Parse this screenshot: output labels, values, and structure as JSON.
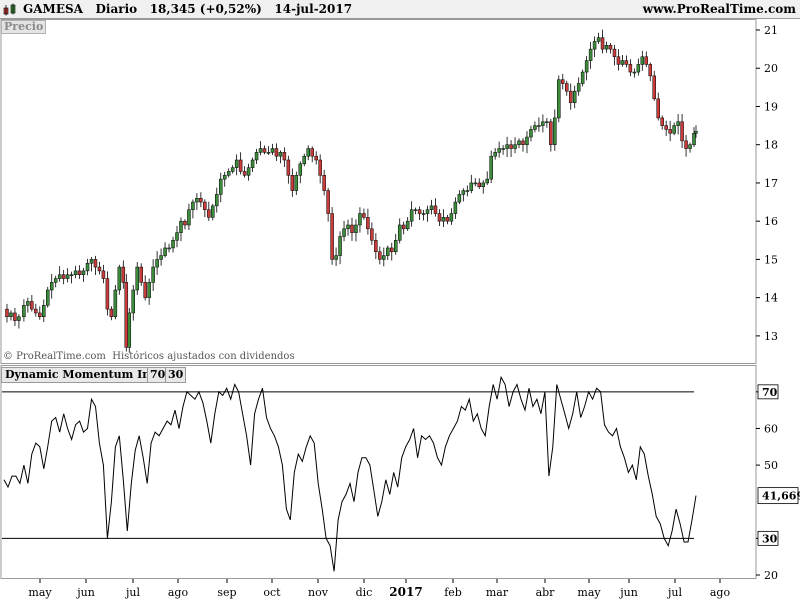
{
  "header": {
    "symbol": "GAMESA",
    "period": "Diario",
    "price_change": "18,345 (+0,52%)",
    "date": "14-jul-2017",
    "url": "www.ProRealTime.com"
  },
  "price_panel": {
    "label": "Precio",
    "copyright": "© ProRealTime.com  Históricos ajustados con dividendos"
  },
  "indicator_panel": {
    "label": "Dynamic Momentum Index",
    "level_high": "70",
    "level_low": "30"
  },
  "colors": {
    "up": "#3c8c3c",
    "down": "#c83c3c",
    "line": "#000000",
    "tag_bg": "#e8e8e8"
  },
  "chart_data": [
    {
      "type": "candlestick",
      "title": "Precio",
      "y_ticks": [
        13,
        14,
        15,
        16,
        17,
        18,
        19,
        20,
        21
      ],
      "ylim": [
        12.1,
        21.3
      ],
      "x_labels": [
        "may",
        "jun",
        "jul",
        "ago",
        "sep",
        "oct",
        "nov",
        "dic",
        "2017",
        "feb",
        "mar",
        "abr",
        "may",
        "jun",
        "jul",
        "ago"
      ],
      "last_close": 18.345,
      "points": [
        [
          0,
          13.7
        ],
        [
          3,
          13.5
        ],
        [
          7,
          13.6
        ],
        [
          11,
          13.4
        ],
        [
          15,
          13.5
        ],
        [
          20,
          13.8
        ],
        [
          24,
          13.9
        ],
        [
          28,
          13.7
        ],
        [
          32,
          13.6
        ],
        [
          36,
          13.5
        ],
        [
          40,
          13.8
        ],
        [
          44,
          14.2
        ],
        [
          48,
          14.4
        ],
        [
          52,
          14.5
        ],
        [
          56,
          14.6
        ],
        [
          60,
          14.5
        ],
        [
          64,
          14.6
        ],
        [
          68,
          14.6
        ],
        [
          72,
          14.7
        ],
        [
          76,
          14.6
        ],
        [
          80,
          14.7
        ],
        [
          84,
          14.9
        ],
        [
          88,
          15.0
        ],
        [
          92,
          14.8
        ],
        [
          96,
          14.7
        ],
        [
          100,
          14.5
        ],
        [
          104,
          13.7
        ],
        [
          108,
          13.5
        ],
        [
          112,
          14.2
        ],
        [
          116,
          14.8
        ],
        [
          120,
          14.4
        ],
        [
          123,
          12.7
        ],
        [
          126,
          13.6
        ],
        [
          130,
          14.2
        ],
        [
          134,
          14.8
        ],
        [
          138,
          14.4
        ],
        [
          142,
          14.0
        ],
        [
          146,
          14.4
        ],
        [
          150,
          14.8
        ],
        [
          154,
          15.0
        ],
        [
          158,
          15.1
        ],
        [
          162,
          15.3
        ],
        [
          166,
          15.3
        ],
        [
          170,
          15.5
        ],
        [
          174,
          15.7
        ],
        [
          178,
          16.0
        ],
        [
          182,
          15.9
        ],
        [
          186,
          16.3
        ],
        [
          190,
          16.5
        ],
        [
          194,
          16.6
        ],
        [
          198,
          16.5
        ],
        [
          202,
          16.3
        ],
        [
          206,
          16.1
        ],
        [
          210,
          16.4
        ],
        [
          214,
          16.7
        ],
        [
          218,
          17.1
        ],
        [
          222,
          17.2
        ],
        [
          226,
          17.3
        ],
        [
          230,
          17.4
        ],
        [
          234,
          17.6
        ],
        [
          238,
          17.3
        ],
        [
          242,
          17.2
        ],
        [
          246,
          17.4
        ],
        [
          250,
          17.6
        ],
        [
          254,
          17.8
        ],
        [
          258,
          17.9
        ],
        [
          262,
          17.8
        ],
        [
          266,
          17.8
        ],
        [
          270,
          17.9
        ],
        [
          274,
          17.7
        ],
        [
          278,
          17.8
        ],
        [
          282,
          17.6
        ],
        [
          286,
          17.2
        ],
        [
          290,
          16.8
        ],
        [
          294,
          17.2
        ],
        [
          298,
          17.5
        ],
        [
          302,
          17.7
        ],
        [
          306,
          17.9
        ],
        [
          310,
          17.7
        ],
        [
          314,
          17.6
        ],
        [
          318,
          17.2
        ],
        [
          322,
          16.8
        ],
        [
          326,
          16.2
        ],
        [
          330,
          15.0
        ],
        [
          334,
          15.1
        ],
        [
          338,
          15.6
        ],
        [
          342,
          15.8
        ],
        [
          346,
          15.9
        ],
        [
          350,
          15.7
        ],
        [
          354,
          15.9
        ],
        [
          358,
          16.2
        ],
        [
          362,
          16.1
        ],
        [
          366,
          15.8
        ],
        [
          370,
          15.5
        ],
        [
          374,
          15.2
        ],
        [
          378,
          15.0
        ],
        [
          382,
          15.1
        ],
        [
          386,
          15.3
        ],
        [
          390,
          15.2
        ],
        [
          394,
          15.5
        ],
        [
          398,
          15.9
        ],
        [
          402,
          15.8
        ],
        [
          406,
          16.0
        ],
        [
          410,
          16.3
        ],
        [
          414,
          16.3
        ],
        [
          418,
          16.2
        ],
        [
          422,
          16.2
        ],
        [
          426,
          16.3
        ],
        [
          430,
          16.4
        ],
        [
          434,
          16.2
        ],
        [
          438,
          16.0
        ],
        [
          442,
          16.1
        ],
        [
          446,
          16.0
        ],
        [
          450,
          16.2
        ],
        [
          454,
          16.5
        ],
        [
          458,
          16.7
        ],
        [
          462,
          16.8
        ],
        [
          466,
          16.8
        ],
        [
          470,
          17.0
        ],
        [
          474,
          17.0
        ],
        [
          478,
          16.9
        ],
        [
          482,
          17.0
        ],
        [
          486,
          17.1
        ],
        [
          490,
          17.7
        ],
        [
          494,
          17.8
        ],
        [
          498,
          17.9
        ],
        [
          502,
          17.9
        ],
        [
          506,
          18.0
        ],
        [
          510,
          17.9
        ],
        [
          514,
          18.0
        ],
        [
          518,
          18.1
        ],
        [
          522,
          18.0
        ],
        [
          526,
          18.2
        ],
        [
          530,
          18.4
        ],
        [
          534,
          18.5
        ],
        [
          538,
          18.5
        ],
        [
          542,
          18.6
        ],
        [
          546,
          18.6
        ],
        [
          550,
          18.0
        ],
        [
          554,
          18.7
        ],
        [
          558,
          19.7
        ],
        [
          562,
          19.6
        ],
        [
          566,
          19.4
        ],
        [
          570,
          19.1
        ],
        [
          574,
          19.4
        ],
        [
          578,
          19.6
        ],
        [
          582,
          19.9
        ],
        [
          586,
          20.2
        ],
        [
          590,
          20.5
        ],
        [
          594,
          20.7
        ],
        [
          598,
          20.8
        ],
        [
          602,
          20.5
        ],
        [
          606,
          20.6
        ],
        [
          610,
          20.5
        ],
        [
          614,
          20.3
        ],
        [
          618,
          20.1
        ],
        [
          622,
          20.2
        ],
        [
          626,
          20.1
        ],
        [
          630,
          19.9
        ],
        [
          634,
          19.9
        ],
        [
          638,
          20.1
        ],
        [
          642,
          20.3
        ],
        [
          646,
          20.1
        ],
        [
          650,
          19.8
        ],
        [
          654,
          19.2
        ],
        [
          658,
          18.7
        ],
        [
          662,
          18.5
        ],
        [
          666,
          18.4
        ],
        [
          670,
          18.3
        ],
        [
          674,
          18.5
        ],
        [
          678,
          18.6
        ],
        [
          682,
          18.1
        ],
        [
          686,
          17.9
        ],
        [
          690,
          18.0
        ],
        [
          694,
          18.3
        ],
        [
          696,
          18.345
        ]
      ]
    },
    {
      "type": "line",
      "title": "Dynamic Momentum Index",
      "y_ticks": [
        20,
        30,
        40,
        50,
        60,
        70
      ],
      "ylim": [
        18.5,
        75.5
      ],
      "levels": [
        70,
        30
      ],
      "last_value": "41,669",
      "points": [
        [
          0,
          46
        ],
        [
          4,
          44
        ],
        [
          8,
          47
        ],
        [
          12,
          47
        ],
        [
          16,
          45
        ],
        [
          20,
          50
        ],
        [
          24,
          45
        ],
        [
          28,
          53
        ],
        [
          32,
          56
        ],
        [
          36,
          55
        ],
        [
          40,
          49
        ],
        [
          44,
          55
        ],
        [
          48,
          62
        ],
        [
          52,
          63
        ],
        [
          56,
          59
        ],
        [
          60,
          64
        ],
        [
          64,
          60
        ],
        [
          68,
          57
        ],
        [
          72,
          61
        ],
        [
          76,
          62
        ],
        [
          80,
          59
        ],
        [
          84,
          60
        ],
        [
          88,
          68
        ],
        [
          92,
          66
        ],
        [
          96,
          56
        ],
        [
          100,
          50
        ],
        [
          104,
          30
        ],
        [
          108,
          40
        ],
        [
          112,
          55
        ],
        [
          116,
          58
        ],
        [
          120,
          46
        ],
        [
          124,
          32
        ],
        [
          128,
          45
        ],
        [
          132,
          54
        ],
        [
          136,
          58
        ],
        [
          140,
          52
        ],
        [
          144,
          45
        ],
        [
          148,
          56
        ],
        [
          152,
          59
        ],
        [
          156,
          58
        ],
        [
          160,
          60
        ],
        [
          164,
          62
        ],
        [
          168,
          61
        ],
        [
          172,
          65
        ],
        [
          176,
          60
        ],
        [
          180,
          66
        ],
        [
          184,
          70
        ],
        [
          188,
          69
        ],
        [
          192,
          68
        ],
        [
          196,
          70
        ],
        [
          200,
          67
        ],
        [
          204,
          62
        ],
        [
          208,
          56
        ],
        [
          212,
          64
        ],
        [
          216,
          70
        ],
        [
          220,
          69
        ],
        [
          224,
          71
        ],
        [
          228,
          68
        ],
        [
          232,
          72
        ],
        [
          236,
          70
        ],
        [
          240,
          64
        ],
        [
          244,
          58
        ],
        [
          248,
          50
        ],
        [
          252,
          64
        ],
        [
          256,
          68
        ],
        [
          260,
          71
        ],
        [
          264,
          63
        ],
        [
          268,
          60
        ],
        [
          272,
          58
        ],
        [
          276,
          55
        ],
        [
          280,
          50
        ],
        [
          284,
          38
        ],
        [
          288,
          35
        ],
        [
          292,
          48
        ],
        [
          296,
          53
        ],
        [
          300,
          51
        ],
        [
          304,
          55
        ],
        [
          308,
          58
        ],
        [
          312,
          56
        ],
        [
          316,
          45
        ],
        [
          320,
          38
        ],
        [
          324,
          30
        ],
        [
          328,
          28
        ],
        [
          332,
          21
        ],
        [
          336,
          35
        ],
        [
          340,
          40
        ],
        [
          344,
          42
        ],
        [
          348,
          45
        ],
        [
          352,
          40
        ],
        [
          356,
          48
        ],
        [
          360,
          52
        ],
        [
          364,
          52
        ],
        [
          368,
          50
        ],
        [
          372,
          43
        ],
        [
          376,
          36
        ],
        [
          380,
          40
        ],
        [
          384,
          46
        ],
        [
          388,
          42
        ],
        [
          392,
          48
        ],
        [
          396,
          44
        ],
        [
          400,
          52
        ],
        [
          404,
          55
        ],
        [
          408,
          57
        ],
        [
          412,
          60
        ],
        [
          416,
          52
        ],
        [
          420,
          58
        ],
        [
          424,
          57
        ],
        [
          428,
          58
        ],
        [
          432,
          56
        ],
        [
          436,
          52
        ],
        [
          440,
          50
        ],
        [
          444,
          55
        ],
        [
          448,
          58
        ],
        [
          452,
          60
        ],
        [
          456,
          62
        ],
        [
          460,
          66
        ],
        [
          464,
          65
        ],
        [
          468,
          68
        ],
        [
          472,
          62
        ],
        [
          476,
          64
        ],
        [
          480,
          60
        ],
        [
          484,
          58
        ],
        [
          488,
          66
        ],
        [
          492,
          72
        ],
        [
          496,
          68
        ],
        [
          500,
          74
        ],
        [
          504,
          72
        ],
        [
          508,
          66
        ],
        [
          512,
          70
        ],
        [
          516,
          72
        ],
        [
          520,
          68
        ],
        [
          524,
          65
        ],
        [
          528,
          71
        ],
        [
          532,
          66
        ],
        [
          536,
          68
        ],
        [
          540,
          64
        ],
        [
          544,
          70
        ],
        [
          548,
          47
        ],
        [
          552,
          55
        ],
        [
          556,
          72
        ],
        [
          560,
          68
        ],
        [
          564,
          64
        ],
        [
          568,
          60
        ],
        [
          572,
          64
        ],
        [
          576,
          70
        ],
        [
          580,
          63
        ],
        [
          584,
          66
        ],
        [
          588,
          70
        ],
        [
          592,
          68
        ],
        [
          596,
          71
        ],
        [
          600,
          70
        ],
        [
          604,
          61
        ],
        [
          608,
          59
        ],
        [
          612,
          58
        ],
        [
          616,
          60
        ],
        [
          620,
          55
        ],
        [
          624,
          52
        ],
        [
          628,
          48
        ],
        [
          632,
          50
        ],
        [
          636,
          46
        ],
        [
          640,
          55
        ],
        [
          644,
          53
        ],
        [
          648,
          47
        ],
        [
          652,
          42
        ],
        [
          656,
          36
        ],
        [
          660,
          34
        ],
        [
          664,
          30
        ],
        [
          668,
          28
        ],
        [
          672,
          32
        ],
        [
          676,
          38
        ],
        [
          680,
          34
        ],
        [
          684,
          29
        ],
        [
          688,
          29
        ],
        [
          692,
          35
        ],
        [
          696,
          41.669
        ]
      ]
    }
  ]
}
